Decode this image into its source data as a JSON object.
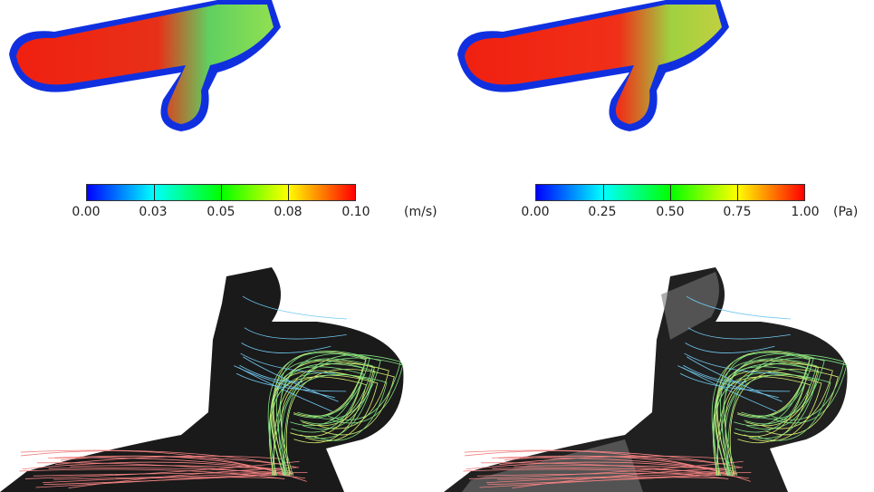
{
  "velocity_colorbar": {
    "ticks": [
      "0.00",
      "0.03",
      "0.05",
      "0.08",
      "0.10"
    ],
    "unit": "(m/s)",
    "colors": [
      "#0000ff",
      "#00ffff",
      "#00ff00",
      "#ffff00",
      "#ff0000"
    ]
  },
  "pressure_colorbar": {
    "ticks": [
      "0.00",
      "0.25",
      "0.50",
      "0.75",
      "1.00"
    ],
    "unit": "(Pa)",
    "colors": [
      "#0000ff",
      "#00ffff",
      "#00ff00",
      "#ffff00",
      "#ff0000"
    ]
  }
}
